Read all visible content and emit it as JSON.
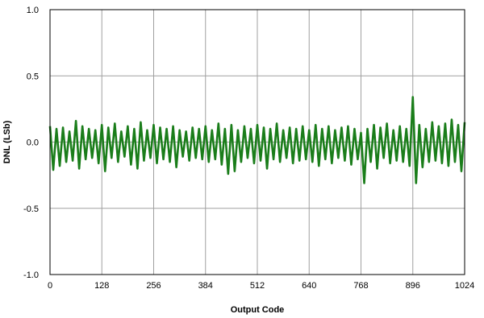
{
  "chart_data": {
    "type": "line",
    "xlabel": "Output Code",
    "ylabel": "DNL (LSb)",
    "xlim": [
      0,
      1024
    ],
    "ylim": [
      -1.0,
      1.0
    ],
    "xticks": [
      0,
      128,
      256,
      384,
      512,
      640,
      768,
      896,
      1024
    ],
    "yticks": [
      1.0,
      0.5,
      0.0,
      -0.5,
      -1.0
    ],
    "xtick_labels": [
      "0",
      "128",
      "256",
      "384",
      "512",
      "640",
      "768",
      "896",
      "1024"
    ],
    "ytick_labels": [
      "1.0",
      "0.5",
      "0.0",
      "-0.5",
      "-1.0"
    ],
    "grid": true,
    "colors": {
      "series": "#1a7d1a",
      "grid": "#a0a0a0",
      "frame": "#000000"
    },
    "series": [
      {
        "x": [
          0,
          8,
          16,
          24,
          32,
          40,
          48,
          56,
          64,
          72,
          80,
          88,
          96,
          104,
          112,
          120,
          128,
          136,
          144,
          152,
          160,
          168,
          176,
          184,
          192,
          200,
          208,
          216,
          224,
          232,
          240,
          248,
          256,
          264,
          272,
          280,
          288,
          296,
          304,
          312,
          320,
          328,
          336,
          344,
          352,
          360,
          368,
          376,
          384,
          392,
          400,
          408,
          416,
          424,
          432,
          440,
          448,
          456,
          464,
          472,
          480,
          488,
          496,
          504,
          512,
          520,
          528,
          536,
          544,
          552,
          560,
          568,
          576,
          584,
          592,
          600,
          608,
          616,
          624,
          632,
          640,
          648,
          656,
          664,
          672,
          680,
          688,
          696,
          704,
          712,
          720,
          728,
          736,
          744,
          752,
          760,
          768,
          776,
          784,
          792,
          800,
          808,
          816,
          824,
          832,
          840,
          848,
          856,
          864,
          872,
          880,
          888,
          896,
          904,
          912,
          920,
          928,
          936,
          944,
          952,
          960,
          968,
          976,
          984,
          992,
          1000,
          1008,
          1016,
          1024
        ],
        "values": [
          0.12,
          -0.21,
          0.1,
          -0.18,
          0.11,
          -0.15,
          0.08,
          -0.14,
          0.16,
          -0.2,
          0.12,
          -0.13,
          0.1,
          -0.12,
          0.09,
          -0.16,
          0.13,
          -0.22,
          0.11,
          -0.12,
          0.14,
          -0.15,
          0.08,
          -0.11,
          0.12,
          -0.17,
          0.1,
          -0.2,
          0.15,
          -0.14,
          0.09,
          -0.12,
          0.13,
          -0.16,
          0.11,
          -0.13,
          0.1,
          -0.15,
          0.12,
          -0.19,
          0.09,
          -0.11,
          0.08,
          -0.14,
          0.11,
          -0.12,
          0.1,
          -0.13,
          0.12,
          -0.15,
          0.09,
          -0.13,
          0.14,
          -0.17,
          0.1,
          -0.24,
          0.13,
          -0.22,
          0.09,
          -0.15,
          0.12,
          -0.12,
          0.1,
          -0.16,
          0.13,
          -0.14,
          0.11,
          -0.2,
          0.1,
          -0.13,
          0.14,
          -0.15,
          0.09,
          -0.12,
          0.11,
          -0.16,
          0.1,
          -0.14,
          0.12,
          -0.13,
          0.09,
          -0.15,
          0.13,
          -0.18,
          0.1,
          -0.13,
          0.12,
          -0.16,
          0.09,
          -0.12,
          0.11,
          -0.14,
          0.12,
          -0.17,
          0.1,
          -0.13,
          0.07,
          -0.31,
          0.1,
          -0.15,
          0.13,
          -0.2,
          0.11,
          -0.12,
          0.14,
          -0.16,
          0.09,
          -0.14,
          0.12,
          -0.15,
          0.1,
          -0.18,
          0.34,
          -0.31,
          0.13,
          -0.19,
          0.1,
          -0.15,
          0.15,
          -0.14,
          0.12,
          -0.16,
          0.14,
          -0.18,
          0.17,
          -0.15,
          0.13,
          -0.22,
          0.15
        ]
      }
    ]
  }
}
